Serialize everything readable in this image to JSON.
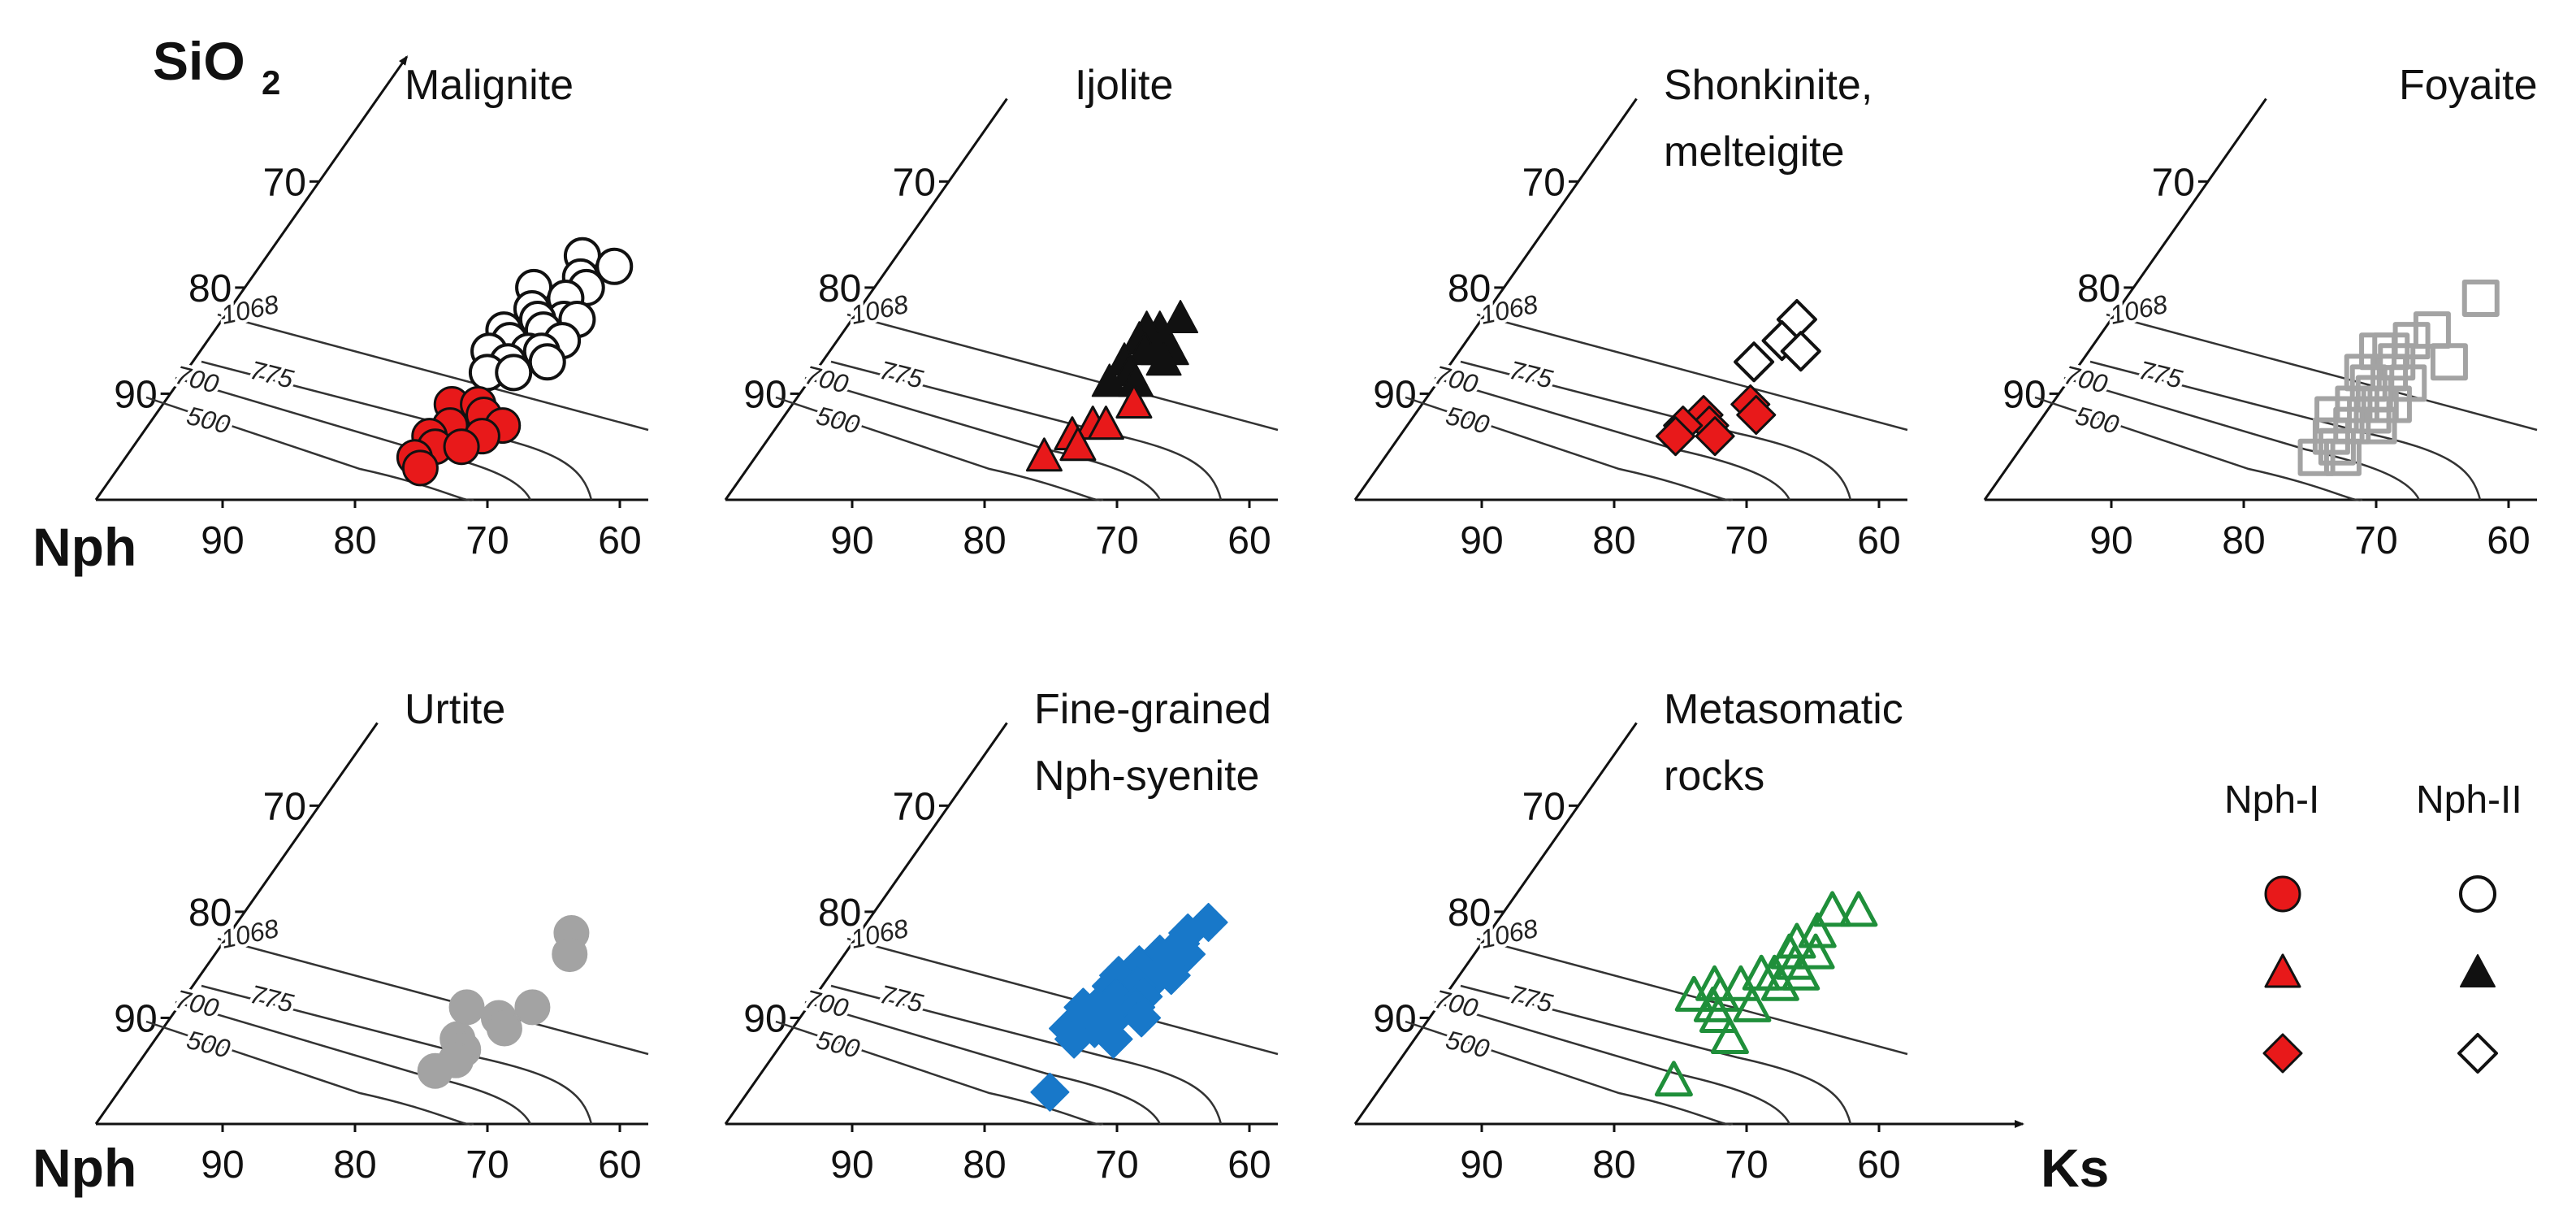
{
  "figure": {
    "axis_labels": {
      "silica": "SiO",
      "silica_subscript": "2",
      "nepheline": "Nph",
      "kalsilite": "Ks"
    },
    "isotherm_labels": [
      "1068",
      "775",
      "700",
      "500"
    ]
  },
  "legend": {
    "nph_i": "Nph-I",
    "nph_ii": "Nph-II"
  },
  "chart_data": {
    "type": "scatter",
    "subtype": "ternary-projection",
    "bottom_axis_ticks": [
      "90",
      "80",
      "70",
      "60"
    ],
    "left_axis_ticks": [
      "70",
      "80",
      "90"
    ],
    "colors": {
      "nph_i": "#e8191a",
      "black": "#111111",
      "gray": "#a3a3a3",
      "blue": "#1878c9",
      "green": "#1f8f3a"
    },
    "panels": [
      {
        "title": [
          "Malignite"
        ],
        "series": [
          {
            "marker": "circle",
            "style": "white",
            "points": [
              [
                76,
                77
              ],
              [
                75,
                79
              ],
              [
                73,
                78
              ],
              [
                74,
                80
              ],
              [
                78,
                80
              ],
              [
                75,
                81
              ],
              [
                77,
                82
              ],
              [
                74,
                83
              ],
              [
                76,
                83
              ],
              [
                78,
                84
              ],
              [
                73,
                83
              ],
              [
                75,
                84
              ],
              [
                77,
                85
              ],
              [
                73,
                85
              ],
              [
                75,
                86
              ],
              [
                78,
                86
              ],
              [
                74,
                86
              ],
              [
                76,
                87
              ],
              [
                77,
                88
              ],
              [
                75,
                88
              ],
              [
                73,
                87
              ]
            ]
          },
          {
            "marker": "circle",
            "style": "red",
            "points": [
              [
                78,
                91
              ],
              [
                76,
                91
              ],
              [
                75,
                92
              ],
              [
                77,
                93
              ],
              [
                73,
                93
              ],
              [
                78,
                94
              ],
              [
                74,
                94
              ],
              [
                77,
                95
              ],
              [
                75,
                95
              ],
              [
                78,
                96
              ],
              [
                77,
                97
              ]
            ]
          }
        ]
      },
      {
        "title": [
          "Ijolite"
        ],
        "series": [
          {
            "marker": "triangle",
            "style": "black",
            "points": [
              [
                75,
                83
              ],
              [
                76,
                84
              ],
              [
                77,
                84
              ],
              [
                75,
                85
              ],
              [
                77,
                85
              ],
              [
                74,
                86
              ],
              [
                76,
                86
              ],
              [
                75,
                86
              ],
              [
                77,
                87
              ],
              [
                76,
                88
              ],
              [
                74,
                87
              ],
              [
                77,
                89
              ],
              [
                75,
                89
              ]
            ]
          },
          {
            "marker": "triangle",
            "style": "red",
            "points": [
              [
                74,
                91
              ],
              [
                76,
                93
              ],
              [
                75,
                93
              ],
              [
                77,
                94
              ],
              [
                76,
                95
              ],
              [
                78,
                96
              ]
            ]
          }
        ]
      },
      {
        "title": [
          "Shonkinite,",
          "melteigite"
        ],
        "series": [
          {
            "marker": "diamond",
            "style": "white",
            "points": [
              [
                76,
                83
              ],
              [
                76,
                85
              ],
              [
                74,
                86
              ],
              [
                77,
                87
              ]
            ]
          },
          {
            "marker": "diamond",
            "style": "red",
            "points": [
              [
                75,
                91
              ],
              [
                74,
                92
              ],
              [
                78,
                92
              ],
              [
                77,
                93
              ],
              [
                79,
                93
              ],
              [
                76,
                94
              ],
              [
                79,
                94
              ]
            ]
          }
        ]
      },
      {
        "title": [
          "Foyaite"
        ],
        "series": [
          {
            "marker": "square",
            "style": "gray",
            "points": [
              [
                73,
                81
              ],
              [
                75,
                84
              ],
              [
                76,
                85
              ],
              [
                77,
                86
              ],
              [
                78,
                86
              ],
              [
                76,
                87
              ],
              [
                72,
                87
              ],
              [
                78,
                88
              ],
              [
                76,
                88
              ],
              [
                77,
                89
              ],
              [
                74,
                89
              ],
              [
                76,
                90
              ],
              [
                75,
                91
              ],
              [
                77,
                91
              ],
              [
                74,
                91
              ],
              [
                78,
                92
              ],
              [
                75,
                92
              ],
              [
                76,
                93
              ],
              [
                77,
                94
              ],
              [
                74,
                93
              ],
              [
                76,
                95
              ],
              [
                75,
                96
              ],
              [
                77,
                96
              ]
            ]
          }
        ]
      },
      {
        "title": [
          "Urtite"
        ],
        "series": [
          {
            "marker": "circle",
            "style": "gray-filled",
            "points": [
              [
                74,
                82
              ],
              [
                73,
                84
              ],
              [
                73,
                89
              ],
              [
                78,
                89
              ],
              [
                75,
                90
              ],
              [
                74,
                91
              ],
              [
                77,
                92
              ],
              [
                76,
                93
              ],
              [
                76,
                94
              ],
              [
                77,
                95
              ]
            ]
          }
        ]
      },
      {
        "title": [
          "Fine-grained",
          "Nph-syenite"
        ],
        "series": [
          {
            "marker": "diamond",
            "style": "blue",
            "points": [
              [
                74,
                81
              ],
              [
                75,
                82
              ],
              [
                75,
                83
              ],
              [
                74,
                84
              ],
              [
                76,
                84
              ],
              [
                75,
                85
              ],
              [
                77,
                85
              ],
              [
                78,
                86
              ],
              [
                75,
                86
              ],
              [
                74,
                86
              ],
              [
                78,
                87
              ],
              [
                76,
                87
              ],
              [
                77,
                88
              ],
              [
                75,
                88
              ],
              [
                79,
                89
              ],
              [
                78,
                89
              ],
              [
                75,
                89
              ],
              [
                78,
                90
              ],
              [
                76,
                90
              ],
              [
                74,
                90
              ],
              [
                77,
                91
              ],
              [
                79,
                91
              ],
              [
                78,
                92
              ],
              [
                75,
                92
              ],
              [
                77,
                97
              ]
            ]
          }
        ]
      },
      {
        "title": [
          "Metasomatic",
          "rocks"
        ],
        "series": [
          {
            "marker": "triangle",
            "style": "green",
            "points": [
              [
                73,
                80
              ],
              [
                75,
                80
              ],
              [
                75,
                82
              ],
              [
                76,
                83
              ],
              [
                74,
                84
              ],
              [
                76,
                84
              ],
              [
                75,
                85
              ],
              [
                74,
                86
              ],
              [
                77,
                86
              ],
              [
                76,
                86
              ],
              [
                80,
                87
              ],
              [
                78,
                87
              ],
              [
                75,
                87
              ],
              [
                81,
                88
              ],
              [
                79,
                88
              ],
              [
                79,
                89
              ],
              [
                76,
                89
              ],
              [
                78,
                90
              ],
              [
                76,
                92
              ],
              [
                78,
                96
              ]
            ]
          }
        ]
      }
    ]
  }
}
